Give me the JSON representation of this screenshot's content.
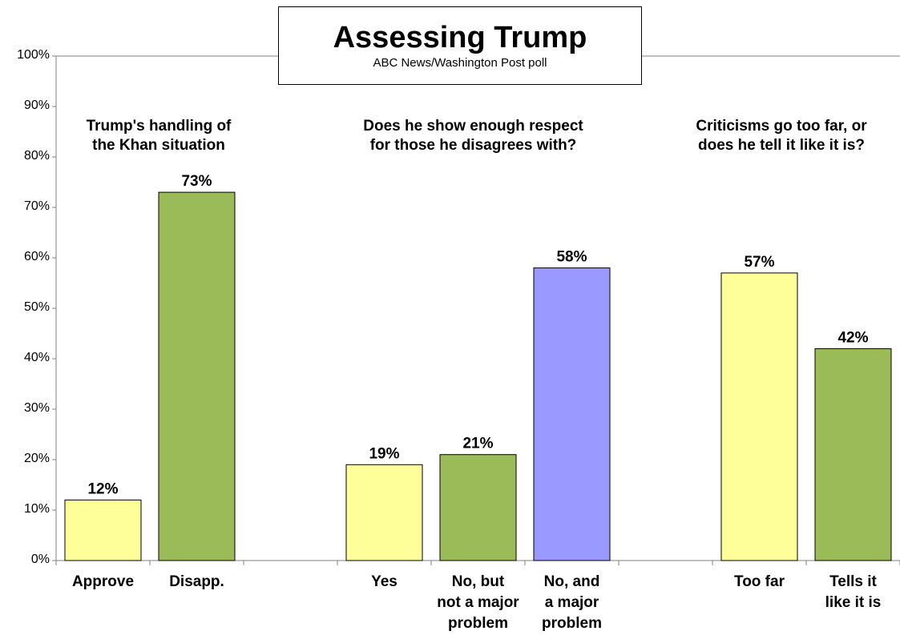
{
  "chart_data": {
    "type": "bar",
    "title": "Assessing Trump",
    "subtitle": "ABC News/Washington  Post poll",
    "ylim": [
      0,
      100
    ],
    "yticks": [
      "0%",
      "10%",
      "20%",
      "30%",
      "40%",
      "50%",
      "60%",
      "70%",
      "80%",
      "90%",
      "100%"
    ],
    "grid": false,
    "groups": [
      {
        "heading": [
          "Trump's handling of",
          "the Khan situation"
        ],
        "bars": [
          {
            "category": [
              "Approve"
            ],
            "value": 12,
            "label": "12%",
            "color": "#ffff99"
          },
          {
            "category": [
              "Disapp."
            ],
            "value": 73,
            "label": "73%",
            "color": "#9bbb59"
          }
        ]
      },
      {
        "heading": [
          "Does he show enough respect",
          "for those he disagrees with?"
        ],
        "bars": [
          {
            "category": [
              "Yes"
            ],
            "value": 19,
            "label": "19%",
            "color": "#ffff99"
          },
          {
            "category": [
              "No, but",
              "not a major",
              "problem"
            ],
            "value": 21,
            "label": "21%",
            "color": "#9bbb59"
          },
          {
            "category": [
              "No, and",
              "a major",
              "problem"
            ],
            "value": 58,
            "label": "58%",
            "color": "#9999ff"
          }
        ]
      },
      {
        "heading": [
          "Criticisms go too far, or",
          "does he tell it like it is?"
        ],
        "bars": [
          {
            "category": [
              "Too far"
            ],
            "value": 57,
            "label": "57%",
            "color": "#ffff99"
          },
          {
            "category": [
              "Tells it",
              "like it is"
            ],
            "value": 42,
            "label": "42%",
            "color": "#9bbb59"
          }
        ]
      }
    ]
  }
}
